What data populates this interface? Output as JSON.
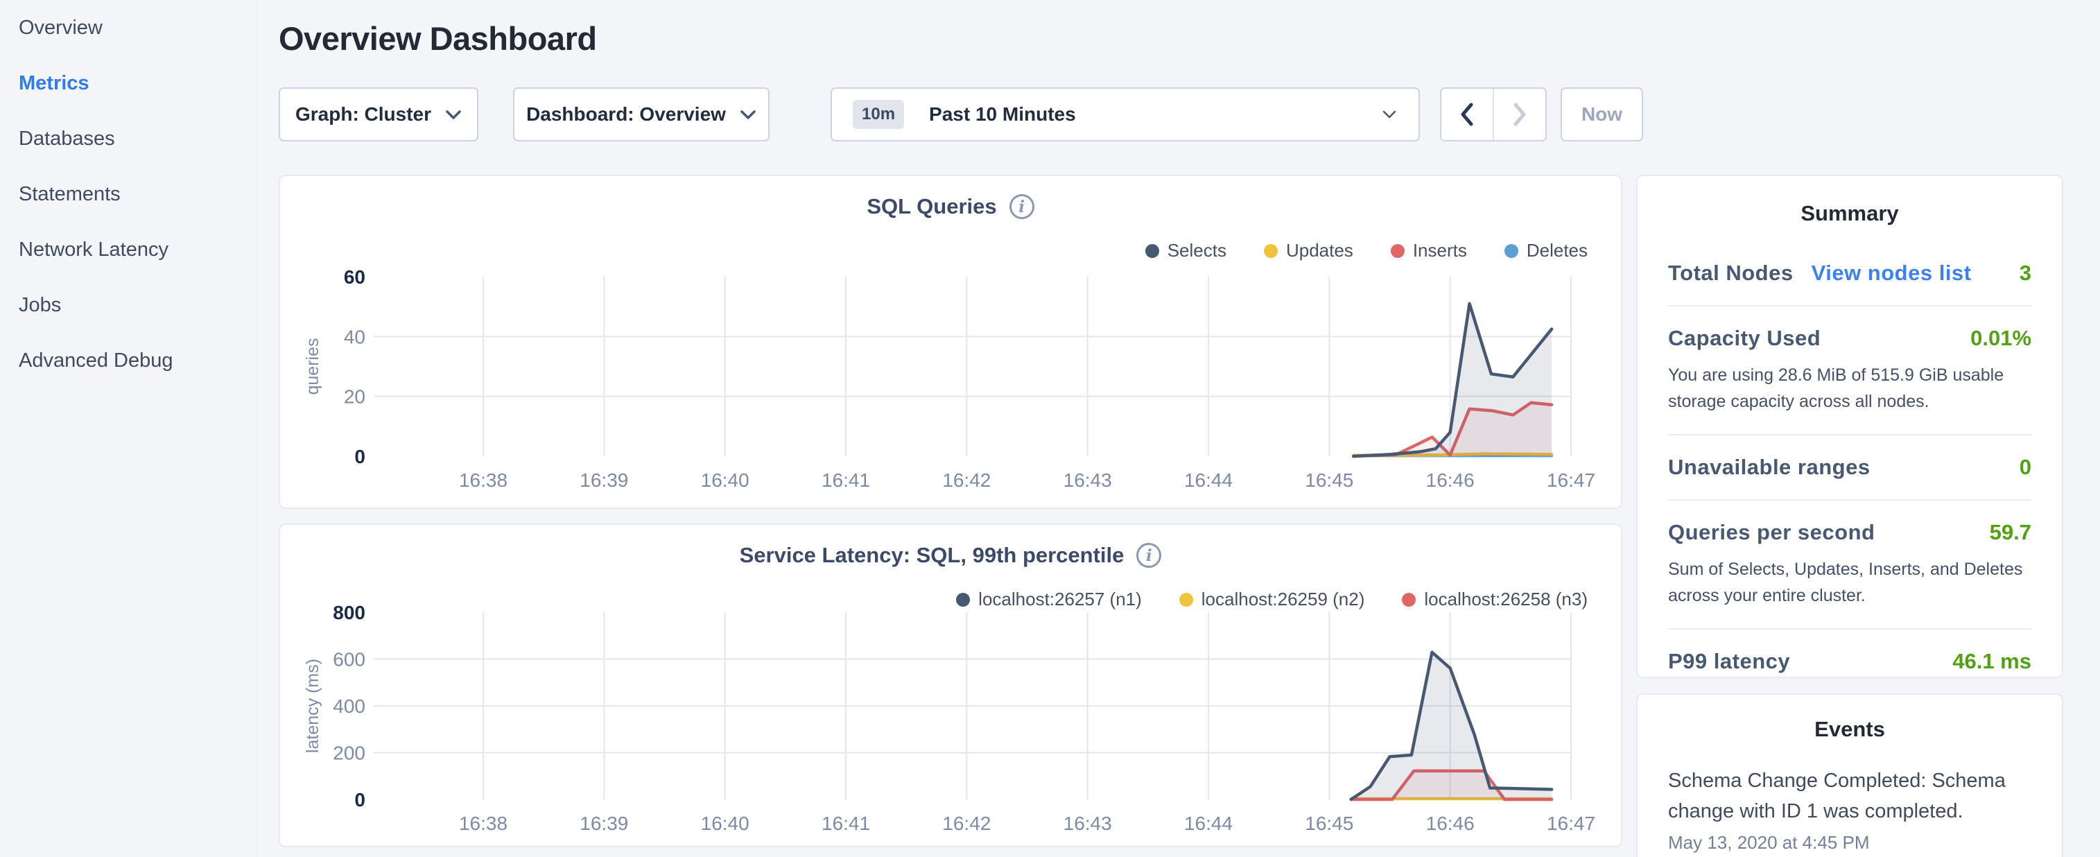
{
  "header": {
    "title": "Overview Dashboard"
  },
  "sidebar": {
    "items": [
      {
        "label": "Overview"
      },
      {
        "label": "Metrics"
      },
      {
        "label": "Databases"
      },
      {
        "label": "Statements"
      },
      {
        "label": "Network Latency"
      },
      {
        "label": "Jobs"
      },
      {
        "label": "Advanced Debug"
      }
    ],
    "active_item": "Metrics",
    "active_color": "#2f7bf0"
  },
  "toolbar": {
    "graph_label": "Graph: Cluster",
    "dashboard_label": "Dashboard: Overview",
    "time_range_badge": "10m",
    "time_range_label": "Past 10 Minutes",
    "now_label": "Now"
  },
  "summary": {
    "title": "Summary",
    "value_color": "#52a113",
    "link_color": "#3b80f5",
    "rows": [
      {
        "label": "Total Nodes",
        "link": "View nodes list",
        "value": "3"
      },
      {
        "label": "Capacity Used",
        "value": "0.01%",
        "description": "You are using 28.6 MiB of 515.9 GiB usable storage capacity across all nodes."
      },
      {
        "label": "Unavailable ranges",
        "value": "0"
      },
      {
        "label": "Queries per second",
        "value": "59.7",
        "description": "Sum of Selects, Updates, Inserts, and Deletes across your entire cluster."
      },
      {
        "label": "P99 latency",
        "value": "46.1 ms"
      }
    ]
  },
  "events": {
    "title": "Events",
    "items": [
      {
        "text": "Schema Change Completed: Schema change with ID 1 was completed.",
        "time": "May 13, 2020 at 4:45 PM"
      }
    ]
  },
  "chart_data": [
    {
      "type": "area",
      "title": "SQL Queries",
      "ylabel": "queries",
      "xlabel": "",
      "x_ticks": [
        "16:38",
        "16:39",
        "16:40",
        "16:41",
        "16:42",
        "16:43",
        "16:44",
        "16:45",
        "16:46",
        "16:47"
      ],
      "ylim": [
        0,
        60
      ],
      "y_ticks": [
        {
          "v": 0,
          "label": "0",
          "bold": true
        },
        {
          "v": 20,
          "label": "20",
          "grid": true
        },
        {
          "v": 40,
          "label": "40",
          "grid": true
        },
        {
          "v": 60,
          "label": "60",
          "bold": true
        }
      ],
      "grid": true,
      "legend_position": "top-right",
      "series": [
        {
          "name": "Selects",
          "color": "#475872",
          "fill": "rgba(71,88,114,0.13)",
          "z": 4,
          "points": [
            [
              7.2,
              0
            ],
            [
              7.5,
              0.6
            ],
            [
              7.75,
              1.5
            ],
            [
              7.88,
              2.5
            ],
            [
              8.0,
              8
            ],
            [
              8.16,
              51
            ],
            [
              8.34,
              27.5
            ],
            [
              8.52,
              26.5
            ],
            [
              8.84,
              42.5
            ]
          ]
        },
        {
          "name": "Updates",
          "color": "#f0c33c",
          "fill": "none",
          "z": 2,
          "points": [
            [
              7.2,
              0.3
            ],
            [
              7.9,
              0.4
            ],
            [
              8.3,
              0.8
            ],
            [
              8.84,
              0.6
            ]
          ]
        },
        {
          "name": "Inserts",
          "color": "#e06567",
          "fill": "rgba(224,101,103,0.10)",
          "z": 3,
          "points": [
            [
              7.2,
              0
            ],
            [
              7.55,
              0.5
            ],
            [
              7.73,
              4
            ],
            [
              7.85,
              6.4
            ],
            [
              8.0,
              0.4
            ],
            [
              8.16,
              15.8
            ],
            [
              8.35,
              15.2
            ],
            [
              8.52,
              13.8
            ],
            [
              8.67,
              17.9
            ],
            [
              8.84,
              17.2
            ]
          ]
        },
        {
          "name": "Deletes",
          "color": "#5b9fd4",
          "fill": "none",
          "z": 1,
          "points": [
            [
              7.2,
              0.2
            ],
            [
              8.84,
              0.2
            ]
          ]
        }
      ]
    },
    {
      "type": "area",
      "title": "Service Latency: SQL, 99th percentile",
      "ylabel": "latency (ms)",
      "xlabel": "",
      "x_ticks": [
        "16:38",
        "16:39",
        "16:40",
        "16:41",
        "16:42",
        "16:43",
        "16:44",
        "16:45",
        "16:46",
        "16:47"
      ],
      "ylim": [
        0,
        800
      ],
      "y_ticks": [
        {
          "v": 0,
          "label": "0",
          "bold": true
        },
        {
          "v": 200,
          "label": "200",
          "grid": true
        },
        {
          "v": 400,
          "label": "400",
          "grid": true
        },
        {
          "v": 600,
          "label": "600",
          "grid": true
        },
        {
          "v": 800,
          "label": "800",
          "bold": true
        }
      ],
      "grid": true,
      "legend_position": "top-right",
      "series": [
        {
          "name": "localhost:26257 (n1)",
          "color": "#475872",
          "fill": "rgba(71,88,114,0.13)",
          "z": 3,
          "points": [
            [
              7.18,
              0
            ],
            [
              7.34,
              55
            ],
            [
              7.5,
              183
            ],
            [
              7.68,
              190
            ],
            [
              7.85,
              629
            ],
            [
              8.0,
              561
            ],
            [
              8.2,
              278
            ],
            [
              8.33,
              49
            ],
            [
              8.52,
              47
            ],
            [
              8.84,
              43
            ]
          ]
        },
        {
          "name": "localhost:26259 (n2)",
          "color": "#f0c33c",
          "fill": "none",
          "z": 1,
          "points": [
            [
              7.18,
              3
            ],
            [
              8.84,
              3
            ]
          ]
        },
        {
          "name": "localhost:26258 (n3)",
          "color": "#e06567",
          "fill": "rgba(224,101,103,0.10)",
          "z": 2,
          "points": [
            [
              7.2,
              0
            ],
            [
              7.52,
              0
            ],
            [
              7.7,
              122
            ],
            [
              8.28,
              122
            ],
            [
              8.45,
              0
            ],
            [
              8.84,
              0
            ]
          ]
        }
      ]
    }
  ]
}
